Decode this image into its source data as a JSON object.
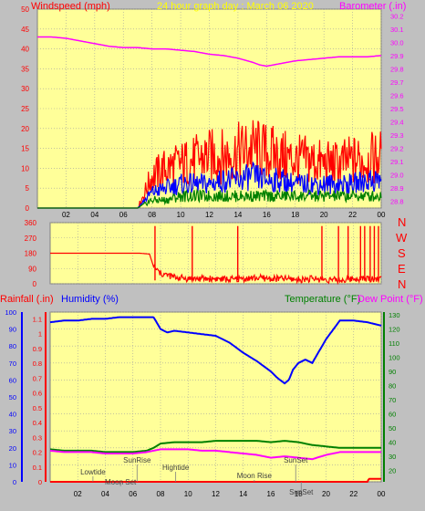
{
  "chart_data": [
    {
      "type": "line",
      "title": "24 hour graph day : March 06 2020",
      "left_label": "Windspeed (mph)",
      "right_label": "Barometer (.in)",
      "x_ticks": [
        "02",
        "04",
        "06",
        "08",
        "10",
        "12",
        "14",
        "16",
        "18",
        "20",
        "22",
        "00"
      ],
      "y_left_ticks": [
        0,
        5,
        10,
        15,
        20,
        25,
        30,
        35,
        40,
        45,
        50
      ],
      "y_left_range": [
        0,
        50
      ],
      "y_right_ticks": [
        28.8,
        28.9,
        29.0,
        29.1,
        29.2,
        29.3,
        29.4,
        29.5,
        29.6,
        29.7,
        29.8,
        29.9,
        30.0,
        30.1,
        30.2
      ],
      "y_right_range": [
        28.75,
        30.25
      ],
      "x_range": [
        0,
        24
      ],
      "series": [
        {
          "name": "Barometer",
          "axis": "right",
          "color": "#ff00ff",
          "x": [
            0,
            1,
            2,
            3,
            4,
            5,
            6,
            7,
            8,
            9,
            10,
            11,
            12,
            13,
            14,
            15,
            15.5,
            16,
            16.5,
            17,
            18,
            19,
            20,
            21,
            22,
            23,
            24
          ],
          "values": [
            30.04,
            30.04,
            30.03,
            30.01,
            29.99,
            29.97,
            29.96,
            29.96,
            29.95,
            29.95,
            29.94,
            29.93,
            29.91,
            29.9,
            29.88,
            29.85,
            29.83,
            29.82,
            29.83,
            29.84,
            29.86,
            29.87,
            29.88,
            29.89,
            29.89,
            29.89,
            29.9
          ]
        },
        {
          "name": "Wind gust",
          "axis": "left",
          "color": "#ff0000",
          "x": [
            0,
            1,
            2,
            3,
            4,
            5,
            6,
            7,
            7.5,
            8,
            9,
            10,
            11,
            12,
            13,
            14,
            15,
            16,
            17,
            18,
            19,
            20,
            21,
            22,
            23,
            24
          ],
          "values": [
            0,
            0,
            0,
            0,
            0,
            0,
            0,
            0,
            4,
            8,
            10,
            11,
            12,
            13,
            13,
            14,
            15,
            14,
            13,
            12,
            12,
            11,
            11,
            12,
            12,
            13
          ]
        },
        {
          "name": "Wind average",
          "axis": "left",
          "color": "#0000ff",
          "x": [
            0,
            1,
            2,
            3,
            4,
            5,
            6,
            7,
            7.5,
            8,
            9,
            10,
            11,
            12,
            13,
            14,
            15,
            16,
            17,
            18,
            19,
            20,
            21,
            22,
            23,
            24
          ],
          "values": [
            0,
            0,
            0,
            0,
            0,
            0,
            0,
            0,
            2,
            4,
            5,
            6,
            6,
            6,
            7,
            7,
            8,
            7,
            7,
            6,
            6,
            6,
            6,
            6,
            7,
            7
          ]
        },
        {
          "name": "Wind low",
          "axis": "left",
          "color": "#008000",
          "x": [
            0,
            1,
            2,
            3,
            4,
            5,
            6,
            7,
            7.5,
            8,
            9,
            10,
            11,
            12,
            13,
            14,
            15,
            16,
            17,
            18,
            19,
            20,
            21,
            22,
            23,
            24
          ],
          "values": [
            0,
            0,
            0,
            0,
            0,
            0,
            0,
            0,
            1,
            2,
            2,
            3,
            3,
            3,
            3,
            3,
            3,
            3,
            3,
            3,
            3,
            3,
            3,
            3,
            3,
            3
          ]
        }
      ]
    },
    {
      "type": "line",
      "y_left_ticks": [
        0,
        90,
        180,
        270,
        360
      ],
      "y_range": [
        0,
        360
      ],
      "right_labels": [
        "N",
        "W",
        "S",
        "E",
        "N"
      ],
      "series": [
        {
          "name": "Wind direction",
          "color": "#ff0000",
          "x": [
            0,
            6.5,
            7.2,
            7.5,
            8,
            9,
            10,
            11,
            12,
            13,
            14,
            15,
            16,
            17,
            18,
            19,
            20,
            21,
            21.5,
            22,
            23,
            24
          ],
          "values": [
            180,
            180,
            175,
            100,
            60,
            40,
            30,
            30,
            30,
            25,
            30,
            35,
            30,
            30,
            25,
            30,
            25,
            20,
            25,
            30,
            30,
            30
          ]
        }
      ]
    },
    {
      "type": "line",
      "left_label_1": "Rainfall (.in)",
      "left_label_2": "Humidity (%)",
      "right_label_1": "Temperature (°F)",
      "right_label_2": "Dew Point (°F)",
      "x_ticks": [
        "02",
        "04",
        "06",
        "08",
        "10",
        "12",
        "14",
        "16",
        "18",
        "20",
        "22",
        "00"
      ],
      "y_humidity_ticks": [
        0,
        10,
        20,
        30,
        40,
        50,
        60,
        70,
        80,
        90,
        100
      ],
      "y_rain_ticks": [
        0,
        0.1,
        0.2,
        0.3,
        0.4,
        0.5,
        0.6,
        0.7,
        0.8,
        0.9,
        1,
        1.1
      ],
      "y_temp_ticks": [
        20,
        30,
        40,
        50,
        60,
        70,
        80,
        90,
        100,
        110,
        120,
        130
      ],
      "humidity_range": [
        0,
        100
      ],
      "temp_range": [
        12,
        132
      ],
      "events": [
        {
          "label": "Lowtide",
          "x": 3.1
        },
        {
          "label": "Moon Set",
          "x": 5.1
        },
        {
          "label": "SunRise",
          "x": 6.3
        },
        {
          "label": "Hightide",
          "x": 9.1
        },
        {
          "label": "Moon Rise",
          "x": 14.8
        },
        {
          "label": "SunSet",
          "x": 17.8
        },
        {
          "label": "SunSet",
          "x": 18.2
        }
      ],
      "series": [
        {
          "name": "Humidity",
          "color": "#0000ff",
          "x": [
            0,
            1,
            2,
            3,
            4,
            5,
            6,
            7,
            7.5,
            8,
            8.5,
            9,
            10,
            11,
            12,
            13,
            14,
            15,
            16,
            16.5,
            17,
            17.3,
            17.6,
            18,
            18.5,
            19,
            20,
            21,
            22,
            23,
            24
          ],
          "values": [
            94,
            95,
            95,
            96,
            96,
            97,
            97,
            97,
            97,
            90,
            88,
            89,
            88,
            87,
            86,
            82,
            76,
            71,
            65,
            61,
            58,
            60,
            66,
            70,
            72,
            70,
            84,
            95,
            95,
            94,
            92
          ]
        },
        {
          "name": "Temperature",
          "color": "#008000",
          "x": [
            0,
            1,
            2,
            3,
            4,
            5,
            6,
            7,
            7.5,
            8,
            9,
            10,
            11,
            12,
            13,
            14,
            15,
            16,
            17,
            18,
            19,
            20,
            21,
            22,
            23,
            24
          ],
          "values": [
            35,
            34,
            34,
            34,
            33,
            33,
            33,
            34,
            36,
            39,
            40,
            40,
            40,
            41,
            41,
            41,
            41,
            40,
            41,
            40,
            38,
            37,
            36,
            36,
            36,
            36
          ]
        },
        {
          "name": "Dew Point",
          "color": "#ff00ff",
          "x": [
            0,
            1,
            2,
            3,
            4,
            5,
            6,
            7,
            7.5,
            8,
            9,
            10,
            11,
            12,
            13,
            14,
            15,
            16,
            17,
            18,
            19,
            20,
            21,
            22,
            23,
            24
          ],
          "values": [
            34,
            33,
            33,
            33,
            32,
            32,
            32,
            33,
            34,
            35,
            35,
            35,
            34,
            34,
            33,
            32,
            31,
            29,
            30,
            29,
            28,
            31,
            33,
            33,
            33,
            33
          ]
        },
        {
          "name": "Rainfall",
          "color": "#ff0000",
          "x": [
            0,
            23,
            23.1,
            24
          ],
          "values": [
            0,
            0,
            0.02,
            0.02
          ]
        }
      ]
    }
  ],
  "colors": {
    "background": "#c0c0c0",
    "plot_bg": "#ffff99",
    "grid": "#a0a0a0",
    "axis_red": "#ff0000",
    "title_yellow": "#ffff00",
    "barometer_magenta": "#ff00ff",
    "humidity_blue": "#0000ff",
    "temp_green": "#008000",
    "dew_magenta": "#ff00ff"
  }
}
